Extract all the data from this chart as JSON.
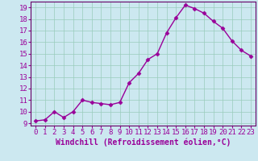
{
  "x": [
    0,
    1,
    2,
    3,
    4,
    5,
    6,
    7,
    8,
    9,
    10,
    11,
    12,
    13,
    14,
    15,
    16,
    17,
    18,
    19,
    20,
    21,
    22,
    23
  ],
  "y": [
    9.2,
    9.3,
    10.0,
    9.5,
    10.0,
    11.0,
    10.8,
    10.7,
    10.6,
    10.8,
    12.5,
    13.3,
    14.5,
    15.0,
    16.8,
    18.1,
    19.2,
    18.9,
    18.5,
    17.8,
    17.2,
    16.1,
    15.3,
    14.8
  ],
  "line_color": "#990099",
  "marker": "D",
  "marker_size": 2.5,
  "line_width": 1.0,
  "xlabel": "Windchill (Refroidissement éolien,°C)",
  "xlabel_fontsize": 7,
  "xlim": [
    -0.5,
    23.5
  ],
  "ylim": [
    8.8,
    19.5
  ],
  "yticks": [
    9,
    10,
    11,
    12,
    13,
    14,
    15,
    16,
    17,
    18,
    19
  ],
  "xticks": [
    0,
    1,
    2,
    3,
    4,
    5,
    6,
    7,
    8,
    9,
    10,
    11,
    12,
    13,
    14,
    15,
    16,
    17,
    18,
    19,
    20,
    21,
    22,
    23
  ],
  "tick_fontsize": 6.5,
  "background_color": "#cce8f0",
  "grid_color": "#99ccbb",
  "figure_bg": "#cce8f0",
  "spine_color": "#660066"
}
